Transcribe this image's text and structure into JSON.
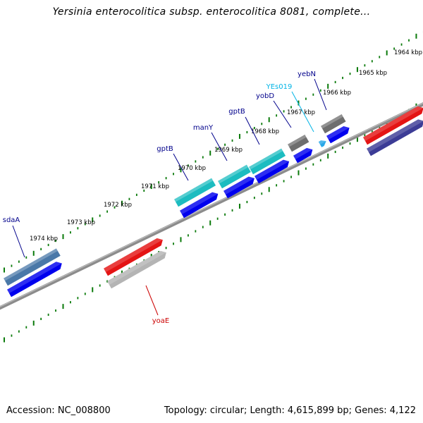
{
  "title": "Yersinia enterocolitica subsp. enterocolitica 8081, complete...",
  "footer": {
    "accession": "Accession: NC_008800",
    "topology": "Topology: circular; Length: 4,615,899 bp; Genes: 4,122"
  },
  "colors": {
    "backbone": "#8c8c8c",
    "tick": "#0a7a0a",
    "cds_forward": "#0000ee",
    "gene_label": "#00008b",
    "red_label": "#cc0000",
    "rna_label": "#00b4e6"
  },
  "ticks": [
    "1964 kbp",
    "1965 kbp",
    "1966 kbp",
    "1967 kbp",
    "1968 kbp",
    "1969 kbp",
    "1970 kbp",
    "1971 kbp",
    "1972 kbp",
    "1973 kbp",
    "1974 kbp"
  ],
  "genes": [
    {
      "label": "sdaA",
      "kind": "gene"
    },
    {
      "label": "gptB",
      "kind": "gene"
    },
    {
      "label": "manY",
      "kind": "gene"
    },
    {
      "label": "gptB",
      "kind": "gene"
    },
    {
      "label": "yobD",
      "kind": "gene"
    },
    {
      "label": "YEs019",
      "kind": "rna"
    },
    {
      "label": "yebN",
      "kind": "gene"
    },
    {
      "label": "yoaE",
      "kind": "red"
    }
  ]
}
